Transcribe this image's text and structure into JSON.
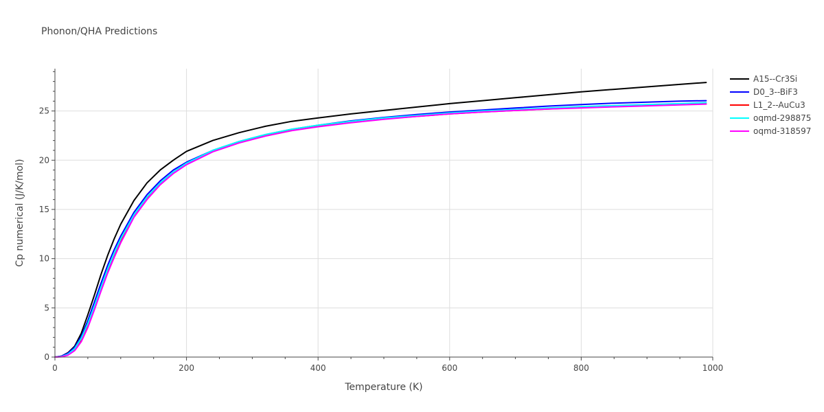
{
  "chart_data": {
    "type": "line",
    "title": "Phonon/QHA Predictions",
    "xlabel": "Temperature (K)",
    "ylabel": "Cp numerical (J/K/mol)",
    "xlim": [
      0,
      1000
    ],
    "ylim": [
      0,
      29.3
    ],
    "x_ticks": [
      0,
      200,
      400,
      600,
      800,
      1000
    ],
    "y_ticks": [
      0,
      5,
      10,
      15,
      20,
      25
    ],
    "grid": true,
    "legend_position": "top-right",
    "series": [
      {
        "name": "A15--Cr3Si",
        "color": "#000000",
        "x": [
          0,
          10,
          20,
          30,
          40,
          50,
          60,
          70,
          80,
          90,
          100,
          120,
          140,
          160,
          180,
          200,
          240,
          280,
          320,
          360,
          400,
          450,
          500,
          550,
          600,
          650,
          700,
          750,
          800,
          850,
          900,
          950,
          990
        ],
        "y": [
          0,
          0.1,
          0.45,
          1.1,
          2.4,
          4.3,
          6.3,
          8.4,
          10.3,
          12.0,
          13.5,
          15.9,
          17.7,
          19.0,
          20.0,
          20.9,
          22.0,
          22.8,
          23.45,
          23.95,
          24.3,
          24.7,
          25.05,
          25.4,
          25.75,
          26.05,
          26.35,
          26.65,
          26.95,
          27.2,
          27.45,
          27.7,
          27.9
        ]
      },
      {
        "name": "D0_3--BiF3",
        "color": "#0000ff",
        "x": [
          0,
          10,
          20,
          30,
          40,
          50,
          60,
          70,
          80,
          90,
          100,
          120,
          140,
          160,
          180,
          200,
          240,
          280,
          320,
          360,
          400,
          450,
          500,
          550,
          600,
          650,
          700,
          750,
          800,
          850,
          900,
          950,
          990
        ],
        "y": [
          0,
          0.1,
          0.4,
          1.0,
          2.1,
          3.7,
          5.6,
          7.5,
          9.3,
          10.9,
          12.3,
          14.7,
          16.5,
          17.9,
          19.0,
          19.8,
          21.0,
          21.9,
          22.6,
          23.15,
          23.55,
          24.0,
          24.35,
          24.65,
          24.9,
          25.1,
          25.3,
          25.5,
          25.65,
          25.8,
          25.9,
          26.0,
          26.05
        ]
      },
      {
        "name": "L1_2--AuCu3",
        "color": "#ff0000",
        "x": [
          0,
          10,
          20,
          30,
          40,
          50,
          60,
          70,
          80,
          90,
          100,
          120,
          140,
          160,
          180,
          200,
          240,
          280,
          320,
          360,
          400,
          450,
          500,
          550,
          600,
          650,
          700,
          750,
          800,
          850,
          900,
          950,
          990
        ],
        "y": [
          0,
          0.05,
          0.25,
          0.75,
          1.7,
          3.2,
          5.0,
          6.9,
          8.7,
          10.3,
          11.8,
          14.3,
          16.1,
          17.6,
          18.7,
          19.6,
          20.9,
          21.8,
          22.5,
          23.05,
          23.45,
          23.85,
          24.2,
          24.45,
          24.7,
          24.9,
          25.05,
          25.2,
          25.35,
          25.45,
          25.55,
          25.65,
          25.72
        ]
      },
      {
        "name": "oqmd-298875",
        "color": "#00ffff",
        "x": [
          0,
          10,
          20,
          30,
          40,
          50,
          60,
          70,
          80,
          90,
          100,
          120,
          140,
          160,
          180,
          200,
          240,
          280,
          320,
          360,
          400,
          450,
          500,
          550,
          600,
          650,
          700,
          750,
          800,
          850,
          900,
          950,
          990
        ],
        "y": [
          0,
          0.05,
          0.3,
          0.85,
          1.9,
          3.4,
          5.2,
          7.1,
          8.9,
          10.5,
          12.0,
          14.45,
          16.25,
          17.7,
          18.8,
          19.7,
          21.0,
          21.9,
          22.6,
          23.15,
          23.55,
          23.95,
          24.3,
          24.55,
          24.8,
          25.0,
          25.15,
          25.3,
          25.45,
          25.55,
          25.65,
          25.75,
          25.85
        ]
      },
      {
        "name": "oqmd-318597",
        "color": "#ff00ff",
        "x": [
          0,
          10,
          20,
          30,
          40,
          50,
          60,
          70,
          80,
          90,
          100,
          120,
          140,
          160,
          180,
          200,
          240,
          280,
          320,
          360,
          400,
          450,
          500,
          550,
          600,
          650,
          700,
          750,
          800,
          850,
          900,
          950,
          990
        ],
        "y": [
          0,
          0.03,
          0.2,
          0.65,
          1.55,
          3.0,
          4.8,
          6.7,
          8.5,
          10.1,
          11.6,
          14.2,
          16.0,
          17.5,
          18.65,
          19.55,
          20.85,
          21.75,
          22.45,
          23.0,
          23.4,
          23.8,
          24.15,
          24.45,
          24.7,
          24.9,
          25.05,
          25.2,
          25.3,
          25.42,
          25.52,
          25.62,
          25.7
        ]
      }
    ]
  }
}
